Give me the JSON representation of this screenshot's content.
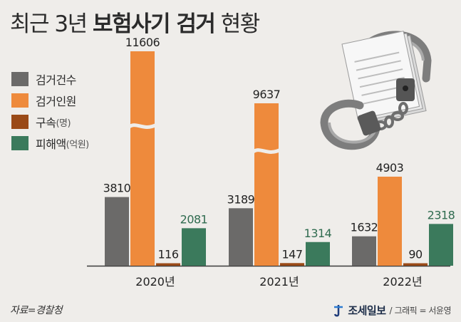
{
  "title": {
    "normal_prefix": "최근 3년 ",
    "bold": "보험사기 검거",
    "normal_suffix": " 현황"
  },
  "legend": [
    {
      "label": "검거건수",
      "unit": "",
      "color": "#6b6a69"
    },
    {
      "label": "검거인원",
      "unit": "",
      "color": "#ee8a3c"
    },
    {
      "label": "구속",
      "unit": "(명)",
      "color": "#9a4a18"
    },
    {
      "label": "피해액",
      "unit": "(억원)",
      "color": "#3b7a5c"
    }
  ],
  "chart_data": {
    "type": "bar",
    "categories": [
      "2020년",
      "2021년",
      "2022년"
    ],
    "series": [
      {
        "name": "검거건수",
        "values": [
          3810,
          3189,
          1632
        ]
      },
      {
        "name": "검거인원",
        "values": [
          11606,
          9637,
          4903
        ]
      },
      {
        "name": "구속(명)",
        "values": [
          116,
          147,
          90
        ]
      },
      {
        "name": "피해액(억원)",
        "values": [
          2081,
          1314,
          2318
        ]
      }
    ],
    "axis_broken_series": "검거인원",
    "colors": [
      "#6b6a69",
      "#ee8a3c",
      "#9a4a18",
      "#3b7a5c"
    ],
    "value_label_colors": [
      "#222222",
      "#222222",
      "#222222",
      "#2f6b4f"
    ],
    "grid": false
  },
  "source": "자료=경찰청",
  "credit": {
    "logo": "조세일보",
    "separator": "/",
    "graphic": "그래픽 = 서윤영"
  }
}
